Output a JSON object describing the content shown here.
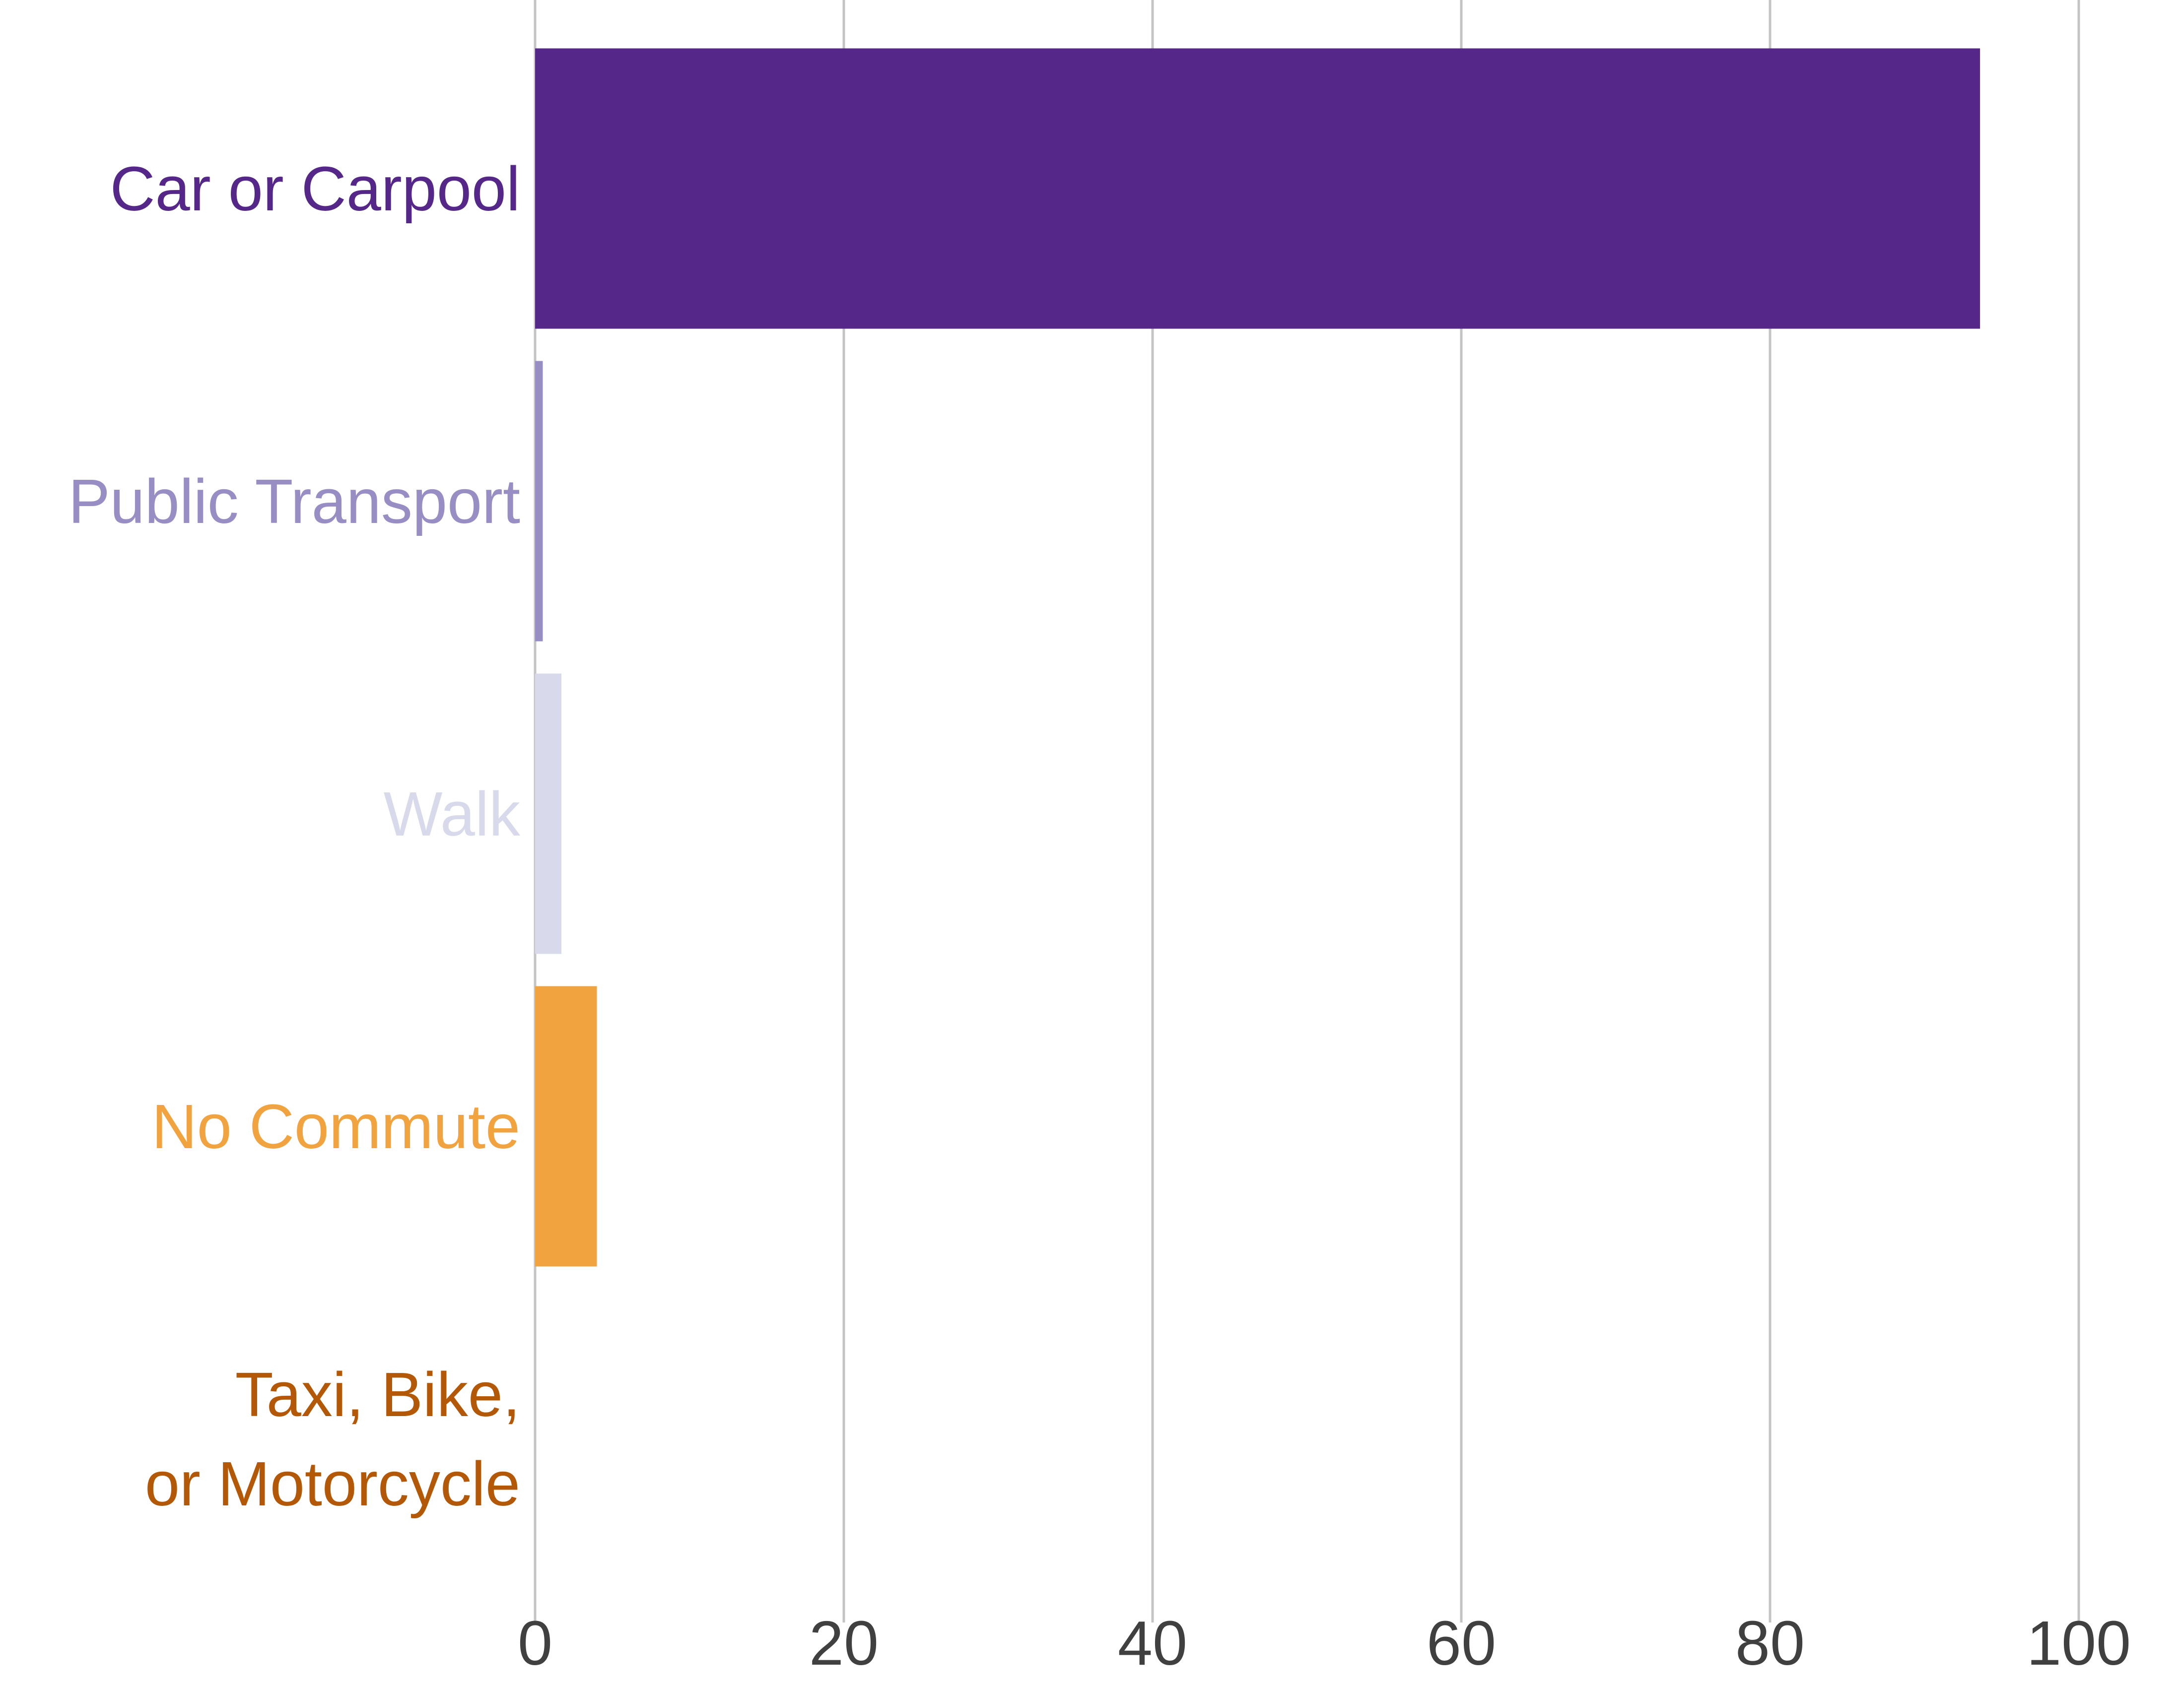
{
  "chart_data": {
    "type": "bar",
    "orientation": "horizontal",
    "categories": [
      {
        "lines": [
          "Car or Carpool"
        ],
        "color": "#542788"
      },
      {
        "lines": [
          "Public Transport"
        ],
        "color": "#998ec3"
      },
      {
        "lines": [
          "Walk"
        ],
        "color": "#d8daeb"
      },
      {
        "lines": [
          "No Commute"
        ],
        "color": "#f1a340"
      },
      {
        "lines": [
          "Taxi, Bike,",
          "or Motorcycle"
        ],
        "color": "#b35806"
      }
    ],
    "values": [
      93.6,
      0.5,
      1.7,
      4.0,
      0.0
    ],
    "xlim": [
      0,
      100
    ],
    "xticks": [
      0,
      20,
      40,
      60,
      80,
      100
    ],
    "grid": "vertical",
    "legend": "none",
    "title": "",
    "xlabel": "",
    "ylabel": ""
  }
}
